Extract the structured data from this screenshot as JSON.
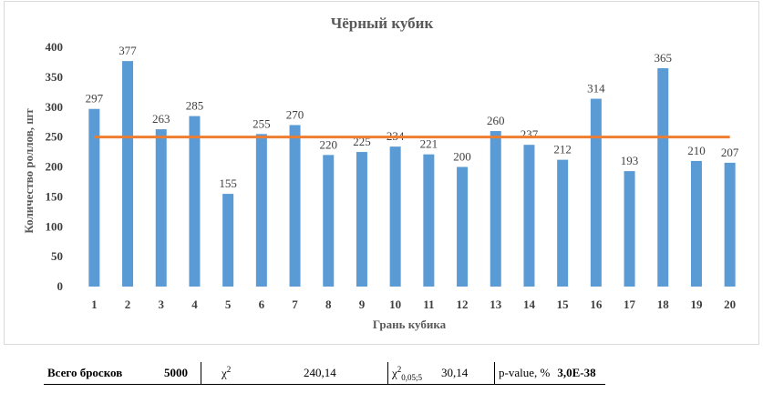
{
  "chart_data": {
    "type": "bar",
    "title": "Чёрный кубик",
    "xlabel": "Грань кубика",
    "ylabel": "Количество роллов, шт",
    "categories": [
      "1",
      "2",
      "3",
      "4",
      "5",
      "6",
      "7",
      "8",
      "9",
      "10",
      "11",
      "12",
      "13",
      "14",
      "15",
      "16",
      "17",
      "18",
      "19",
      "20"
    ],
    "values": [
      297,
      377,
      263,
      285,
      155,
      255,
      270,
      220,
      225,
      234,
      221,
      200,
      260,
      237,
      212,
      314,
      193,
      365,
      210,
      207
    ],
    "reference_line": 250,
    "ylim": [
      0,
      400
    ],
    "yticks": [
      0,
      50,
      100,
      150,
      200,
      250,
      300,
      350,
      400
    ],
    "bar_color": "#5b9bd5",
    "line_color": "#ed7d31",
    "grid": false,
    "legend": "none"
  },
  "stats": {
    "total_label": "Всего бросков",
    "total_value": "5000",
    "chi2_symbol": "χ",
    "chi2_sup": "2",
    "chi2_value": "240,14",
    "chi2crit_symbol": "χ",
    "chi2crit_sup": "2",
    "chi2crit_sub": "0,05;5",
    "chi2crit_value": "30,14",
    "pvalue_label": "p-value, %",
    "pvalue_value": "3,0E-38"
  }
}
